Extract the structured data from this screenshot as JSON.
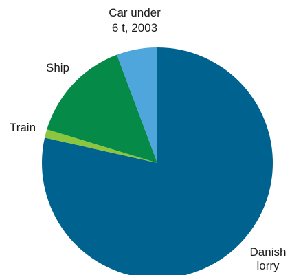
{
  "chart_data": {
    "type": "pie",
    "title": "",
    "start_angle_deg": 0,
    "direction": "clockwise",
    "slices": [
      {
        "label": "Danish lorry",
        "label_lines": [
          "Danish",
          "lorry"
        ],
        "value": 78.5,
        "color": "#00628f"
      },
      {
        "label": "Train",
        "label_lines": [
          "Train"
        ],
        "value": 1.2,
        "color": "#8cc63f"
      },
      {
        "label": "Ship",
        "label_lines": [
          "Ship"
        ],
        "value": 14.6,
        "color": "#058a48"
      },
      {
        "label": "Car under 6 t, 2003",
        "label_lines": [
          "Car under",
          "6 t, 2003"
        ],
        "value": 5.7,
        "color": "#4ea6dc"
      }
    ]
  }
}
